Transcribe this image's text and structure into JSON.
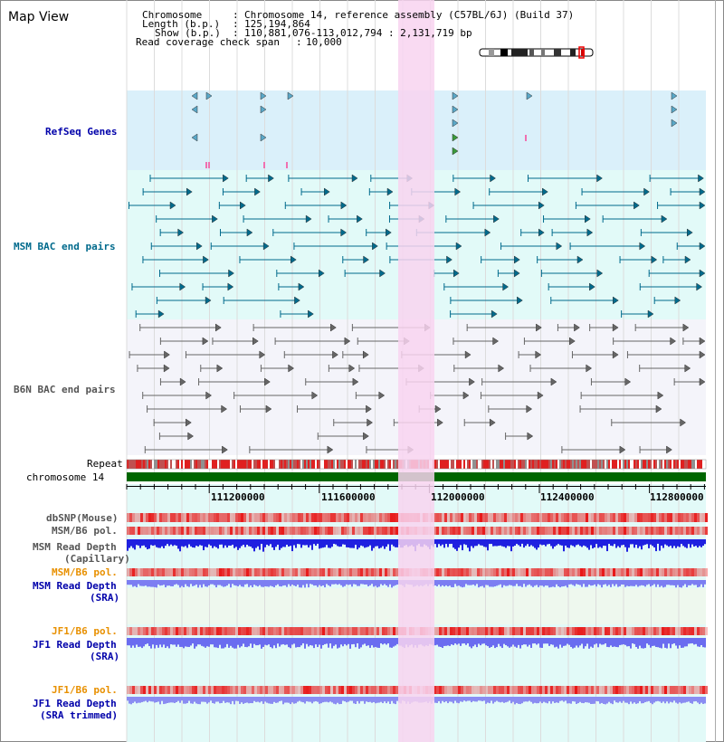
{
  "app": {
    "title": "Map View"
  },
  "header": {
    "chromosome_key": "Chromosome",
    "chromosome_val": "Chromosome 14, reference assembly (C57BL/6J) (Build 37)",
    "length_key": "Length (b.p.)",
    "length_val": "125,194,864",
    "show_key": "Show (b.p.)",
    "show_val": "110,881,076-113,012,794 : 2,131,719 bp",
    "coverage_key": "Read coverage check span",
    "coverage_val": "10,000"
  },
  "tracks": {
    "refseq": "RefSeq Genes",
    "msm_bac": "MSM BAC end pairs",
    "b6n_bac": "B6N BAC end pairs",
    "repeat": "Repeat",
    "chromosome": "chromosome 14",
    "dbsnp": "dbSNP(Mouse)",
    "msm_b6_pol_1": "MSM/B6 pol.",
    "msm_depth_cap_1": "MSM Read Depth",
    "msm_depth_cap_2": "(Capillary)",
    "msm_b6_pol_2": "MSM/B6 pol.",
    "msm_depth_sra_1": "MSM Read Depth",
    "msm_depth_sra_2": "(SRA)",
    "jf1_b6_pol_1": "JF1/B6 pol.",
    "jf1_depth_sra_1": "JF1 Read Depth",
    "jf1_depth_sra_2": "(SRA)",
    "jf1_b6_pol_2": "JF1/B6 pol.",
    "jf1_depth_trim_1": "JF1 Read Depth",
    "jf1_depth_trim_2": "(SRA trimmed)"
  },
  "axis": {
    "ticks": [
      "111200000",
      "111600000",
      "112000000",
      "112400000",
      "112800000"
    ]
  },
  "colors": {
    "refseq_bg": "#daf0fa",
    "bac_bg": "#e2faf8",
    "b6n_bg": "#f4f4fa",
    "highlight": "#f8d4f0",
    "chromosome": "#006600",
    "msm_feature": "#006a8c",
    "b6n_feature": "#555555",
    "pol_red": "#e81818",
    "depth_blue": "#2020e8",
    "depth_light": "#8080f0",
    "orange_label": "#e89000",
    "blue_label": "#0000aa",
    "teal_label": "#006a8c"
  }
}
